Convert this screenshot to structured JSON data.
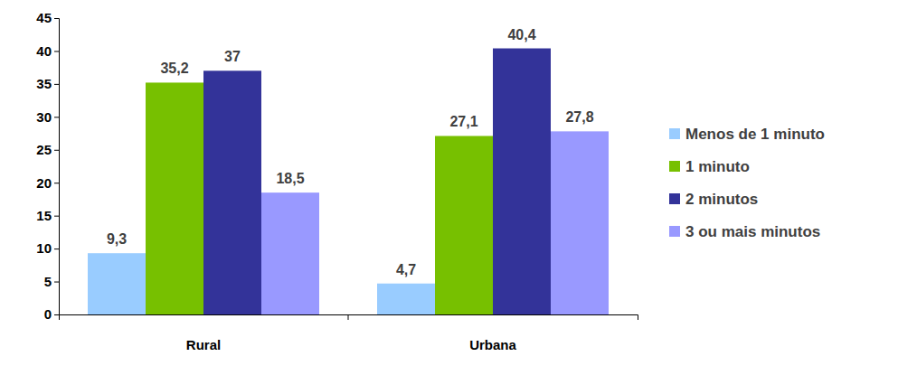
{
  "chart_data": {
    "type": "bar",
    "categories": [
      "Rural",
      "Urbana"
    ],
    "series": [
      {
        "name": "Menos de 1 minuto",
        "color": "#99ccff",
        "values": [
          9.3,
          4.7
        ],
        "value_labels": [
          "9,3",
          "4,7"
        ]
      },
      {
        "name": "1 minuto",
        "color": "#77c000",
        "values": [
          35.2,
          27.1
        ],
        "value_labels": [
          "35,2",
          "27,1"
        ]
      },
      {
        "name": "2 minutos",
        "color": "#333399",
        "values": [
          37,
          40.4
        ],
        "value_labels": [
          "37",
          "40,4"
        ]
      },
      {
        "name": "3 ou mais minutos",
        "color": "#9999ff",
        "values": [
          18.5,
          27.8
        ],
        "value_labels": [
          "18,5",
          "27,8"
        ]
      }
    ],
    "ylim": [
      0,
      45
    ],
    "yticks": [
      0,
      5,
      10,
      15,
      20,
      25,
      30,
      35,
      40,
      45
    ],
    "grid": false,
    "legend": "right",
    "data_labels": true
  }
}
